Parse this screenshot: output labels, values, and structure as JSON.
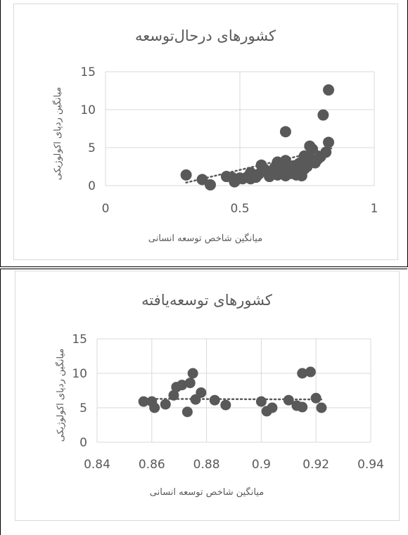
{
  "chart_data": [
    {
      "type": "scatter",
      "title": "کشورهای درحال‌توسعه",
      "xlabel": "میانگین شاخص توسعه انسانی",
      "ylabel": "میانگین ردپای اکولوژیکی",
      "xlim": [
        0,
        1
      ],
      "ylim": [
        0,
        15
      ],
      "xticks": [
        "0",
        "0.5",
        "1"
      ],
      "yticks": [
        "0",
        "5",
        "10",
        "15"
      ],
      "grid": true,
      "trendline": "dotted",
      "points": [
        [
          0.3,
          1.4
        ],
        [
          0.36,
          0.8
        ],
        [
          0.39,
          0.1
        ],
        [
          0.45,
          1.2
        ],
        [
          0.47,
          1.1
        ],
        [
          0.48,
          0.5
        ],
        [
          0.5,
          1.0
        ],
        [
          0.51,
          0.9
        ],
        [
          0.53,
          1.2
        ],
        [
          0.54,
          1.7
        ],
        [
          0.54,
          0.9
        ],
        [
          0.56,
          1.1
        ],
        [
          0.57,
          1.5
        ],
        [
          0.58,
          2.7
        ],
        [
          0.59,
          2.2
        ],
        [
          0.6,
          1.9
        ],
        [
          0.61,
          1.2
        ],
        [
          0.62,
          1.8
        ],
        [
          0.63,
          2.4
        ],
        [
          0.64,
          1.4
        ],
        [
          0.64,
          3.1
        ],
        [
          0.65,
          1.9
        ],
        [
          0.66,
          2.6
        ],
        [
          0.67,
          7.1
        ],
        [
          0.67,
          3.3
        ],
        [
          0.67,
          1.3
        ],
        [
          0.68,
          2.2
        ],
        [
          0.69,
          1.6
        ],
        [
          0.7,
          2.6
        ],
        [
          0.71,
          1.4
        ],
        [
          0.71,
          2.0
        ],
        [
          0.72,
          2.9
        ],
        [
          0.72,
          1.7
        ],
        [
          0.73,
          1.3
        ],
        [
          0.73,
          3.1
        ],
        [
          0.74,
          2.2
        ],
        [
          0.74,
          3.9
        ],
        [
          0.75,
          2.5
        ],
        [
          0.75,
          2.9
        ],
        [
          0.76,
          5.2
        ],
        [
          0.76,
          3.6
        ],
        [
          0.77,
          4.8
        ],
        [
          0.78,
          3.0
        ],
        [
          0.79,
          3.5
        ],
        [
          0.8,
          3.8
        ],
        [
          0.81,
          9.3
        ],
        [
          0.82,
          4.4
        ],
        [
          0.83,
          12.6
        ],
        [
          0.83,
          5.7
        ]
      ],
      "trend": [
        [
          0.3,
          0.4
        ],
        [
          0.84,
          4.9
        ]
      ]
    },
    {
      "type": "scatter",
      "title": "کشورهای توسعه‌یافته",
      "xlabel": "میانگین شاخص توسعه انسانی",
      "ylabel": "میانگین ردپای اکولوژیکی",
      "xlim": [
        0.84,
        0.94
      ],
      "ylim": [
        0,
        15
      ],
      "xticks": [
        "0.84",
        "0.86",
        "0.88",
        "0.9",
        "0.92",
        "0.94"
      ],
      "yticks": [
        "0",
        "5",
        "10",
        "15"
      ],
      "grid": true,
      "trendline": "dotted",
      "points": [
        [
          0.857,
          5.9
        ],
        [
          0.86,
          5.9
        ],
        [
          0.861,
          5.0
        ],
        [
          0.865,
          5.5
        ],
        [
          0.868,
          6.8
        ],
        [
          0.869,
          8.0
        ],
        [
          0.871,
          8.3
        ],
        [
          0.873,
          4.4
        ],
        [
          0.874,
          8.6
        ],
        [
          0.875,
          10.0
        ],
        [
          0.876,
          6.2
        ],
        [
          0.878,
          7.2
        ],
        [
          0.883,
          6.1
        ],
        [
          0.887,
          5.4
        ],
        [
          0.9,
          5.9
        ],
        [
          0.902,
          4.5
        ],
        [
          0.904,
          5.0
        ],
        [
          0.91,
          6.1
        ],
        [
          0.913,
          5.3
        ],
        [
          0.915,
          10.0
        ],
        [
          0.915,
          5.1
        ],
        [
          0.918,
          10.2
        ],
        [
          0.92,
          6.4
        ],
        [
          0.922,
          5.0
        ]
      ],
      "trend": [
        [
          0.857,
          6.3
        ],
        [
          0.922,
          6.2
        ]
      ]
    }
  ],
  "colors": {
    "marker": "#595959",
    "grid": "#d9d9d9",
    "text": "#595959",
    "trend": "#595959"
  }
}
